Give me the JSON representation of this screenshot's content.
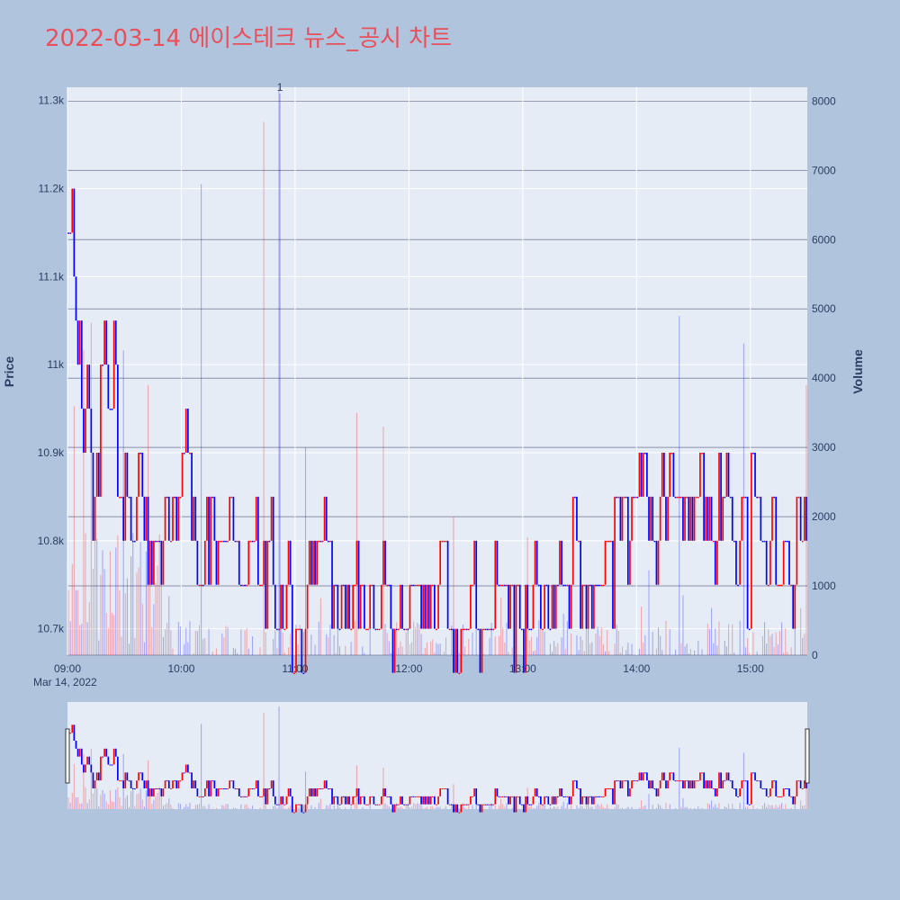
{
  "title": "2022-03-14 에이스테크 뉴스_공시 차트",
  "chart_data": {
    "type": "candlestick",
    "y_axis_title": "Price",
    "y2_axis_title": "Volume",
    "x_date_label": "Mar 14, 2022",
    "annotation": "1",
    "annotation_time": "10:52",
    "price_ticks": [
      "10.7k",
      "10.8k",
      "10.9k",
      "11k",
      "11.1k",
      "11.2k",
      "11.3k"
    ],
    "volume_ticks": [
      "0",
      "1000",
      "2000",
      "3000",
      "4000",
      "5000",
      "6000",
      "7000",
      "8000"
    ],
    "time_ticks": [
      "09:00",
      "10:00",
      "11:00",
      "12:00",
      "13:00",
      "14:00",
      "15:00"
    ],
    "price_range": [
      10670,
      11315
    ],
    "volume_range": [
      0,
      8200
    ],
    "time_range": [
      "09:00",
      "15:30"
    ],
    "up_color": "#ff0000",
    "down_color": "#0000ff",
    "anchors": [
      [
        "09:00",
        11150
      ],
      [
        "09:02",
        11200
      ],
      [
        "09:03",
        11050
      ],
      [
        "09:05",
        11000
      ],
      [
        "09:07",
        10950
      ],
      [
        "09:08",
        10900
      ],
      [
        "09:10",
        10950
      ],
      [
        "09:12",
        10850
      ],
      [
        "09:14",
        10900
      ],
      [
        "09:17",
        11000
      ],
      [
        "09:22",
        10950
      ],
      [
        "09:24",
        11000
      ],
      [
        "09:26",
        10850
      ],
      [
        "09:31",
        10850
      ],
      [
        "09:33",
        10800
      ],
      [
        "09:36",
        10850
      ],
      [
        "09:42",
        10800
      ],
      [
        "09:50",
        10850
      ],
      [
        "09:57",
        10800
      ],
      [
        "10:00",
        10850
      ],
      [
        "10:02",
        10900
      ],
      [
        "10:05",
        10800
      ],
      [
        "10:08",
        10750
      ],
      [
        "10:12",
        10800
      ],
      [
        "10:18",
        10750
      ],
      [
        "10:20",
        10800
      ],
      [
        "10:25",
        10850
      ],
      [
        "10:27",
        10800
      ],
      [
        "10:30",
        10750
      ],
      [
        "10:35",
        10800
      ],
      [
        "10:40",
        10750
      ],
      [
        "10:45",
        10800
      ],
      [
        "10:48",
        10750
      ],
      [
        "10:52",
        10700
      ],
      [
        "10:56",
        10750
      ],
      [
        "10:58",
        10700
      ],
      [
        "11:06",
        10750
      ],
      [
        "11:08",
        10800
      ],
      [
        "11:14",
        10800
      ],
      [
        "11:18",
        10750
      ],
      [
        "11:22",
        10750
      ],
      [
        "11:25",
        10700
      ],
      [
        "11:30",
        10750
      ],
      [
        "11:36",
        10700
      ],
      [
        "11:45",
        10750
      ],
      [
        "11:50",
        10700
      ],
      [
        "12:00",
        10750
      ],
      [
        "12:10",
        10700
      ],
      [
        "12:15",
        10750
      ],
      [
        "12:20",
        10700
      ],
      [
        "12:30",
        10750
      ],
      [
        "12:35",
        10700
      ],
      [
        "12:45",
        10750
      ],
      [
        "12:52",
        10700
      ],
      [
        "12:56",
        10750
      ],
      [
        "13:00",
        10700
      ],
      [
        "13:05",
        10750
      ],
      [
        "13:10",
        10700
      ],
      [
        "13:15",
        10750
      ],
      [
        "13:20",
        10750
      ],
      [
        "13:25",
        10800
      ],
      [
        "13:30",
        10750
      ],
      [
        "13:40",
        10750
      ],
      [
        "13:48",
        10800
      ],
      [
        "13:52",
        10850
      ],
      [
        "13:55",
        10800
      ],
      [
        "13:59",
        10850
      ],
      [
        "14:01",
        10900
      ],
      [
        "14:05",
        10850
      ],
      [
        "14:08",
        10800
      ],
      [
        "14:12",
        10850
      ],
      [
        "14:15",
        10850
      ],
      [
        "14:18",
        10900
      ],
      [
        "14:20",
        10850
      ],
      [
        "14:25",
        10850
      ],
      [
        "14:27",
        10800
      ],
      [
        "14:30",
        10850
      ],
      [
        "14:35",
        10850
      ],
      [
        "14:38",
        10800
      ],
      [
        "14:42",
        10850
      ],
      [
        "14:50",
        10800
      ],
      [
        "14:55",
        10850
      ],
      [
        "14:58",
        10750
      ],
      [
        "15:00",
        10850
      ],
      [
        "15:05",
        10800
      ],
      [
        "15:10",
        10850
      ],
      [
        "15:13",
        10750
      ],
      [
        "15:17",
        10800
      ],
      [
        "15:20",
        10750
      ],
      [
        "15:24",
        10850
      ],
      [
        "15:26",
        10800
      ],
      [
        "15:30",
        10800
      ]
    ],
    "volume_peaks": [
      [
        "09:03",
        3600
      ],
      [
        "09:08",
        4400
      ],
      [
        "09:12",
        4800
      ],
      [
        "09:29",
        4400
      ],
      [
        "09:42",
        3900
      ],
      [
        "10:10",
        6800
      ],
      [
        "10:43",
        7700
      ],
      [
        "10:51",
        8200
      ],
      [
        "11:05",
        3000
      ],
      [
        "11:32",
        3500
      ],
      [
        "11:46",
        3300
      ],
      [
        "12:23",
        2000
      ],
      [
        "14:22",
        4900
      ],
      [
        "14:56",
        4500
      ],
      [
        "15:29",
        3900
      ],
      [
        "14:02",
        700
      ],
      [
        "13:02",
        1700
      ]
    ]
  }
}
